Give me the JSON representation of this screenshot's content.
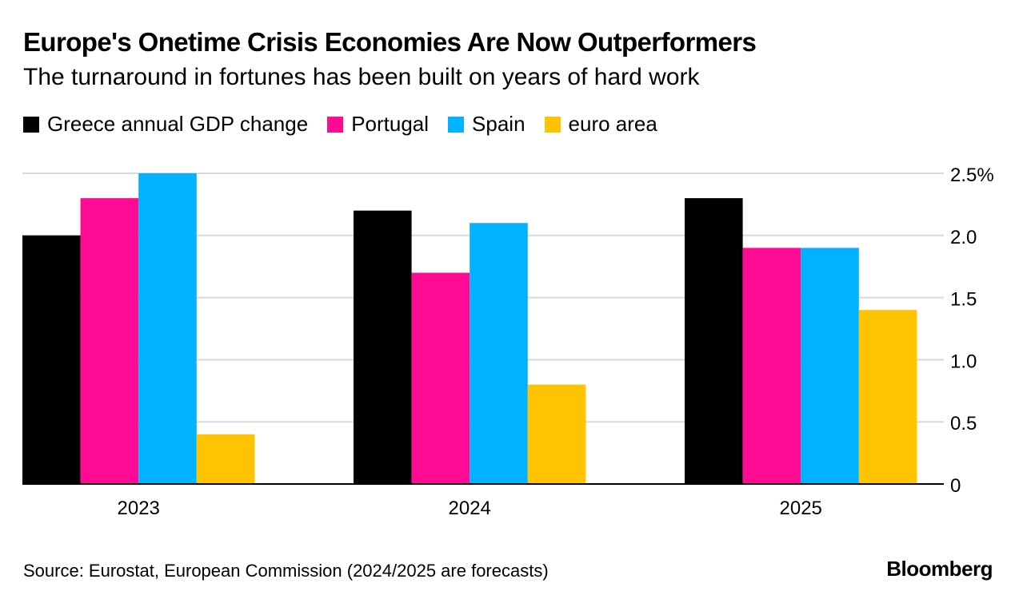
{
  "title": "Europe's Onetime Crisis Economies Are Now Outperformers",
  "subtitle": "The turnaround in fortunes has been built on years of hard work",
  "source": "Source: Eurostat, European Commission (2024/2025 are forecasts)",
  "brand": "Bloomberg",
  "colors": {
    "greece": "#000000",
    "portugal": "#FF0A93",
    "spain": "#00B2FF",
    "euro_area": "#FFC300",
    "grid": "#D9D9D9",
    "axis": "#000000"
  },
  "chart_data": {
    "type": "bar",
    "categories": [
      "2023",
      "2024",
      "2025"
    ],
    "series": [
      {
        "name": "Greece annual GDP change",
        "color": "#000000",
        "values": [
          2.0,
          2.2,
          2.3
        ]
      },
      {
        "name": "Portugal",
        "color": "#FF0A93",
        "values": [
          2.3,
          1.7,
          1.9
        ]
      },
      {
        "name": "Spain",
        "color": "#00B2FF",
        "values": [
          2.5,
          2.1,
          1.9
        ]
      },
      {
        "name": "euro area",
        "color": "#FFC300",
        "values": [
          0.4,
          0.8,
          1.4
        ]
      }
    ],
    "ylim": [
      0,
      2.5
    ],
    "yticks": [
      0,
      0.5,
      1.0,
      1.5,
      2.0,
      2.5
    ],
    "ytick_labels": [
      "0",
      "0.5",
      "1.0",
      "1.5",
      "2.0",
      "2.5%"
    ],
    "y_axis_side": "right",
    "grid": true,
    "legend_position": "top-left"
  }
}
